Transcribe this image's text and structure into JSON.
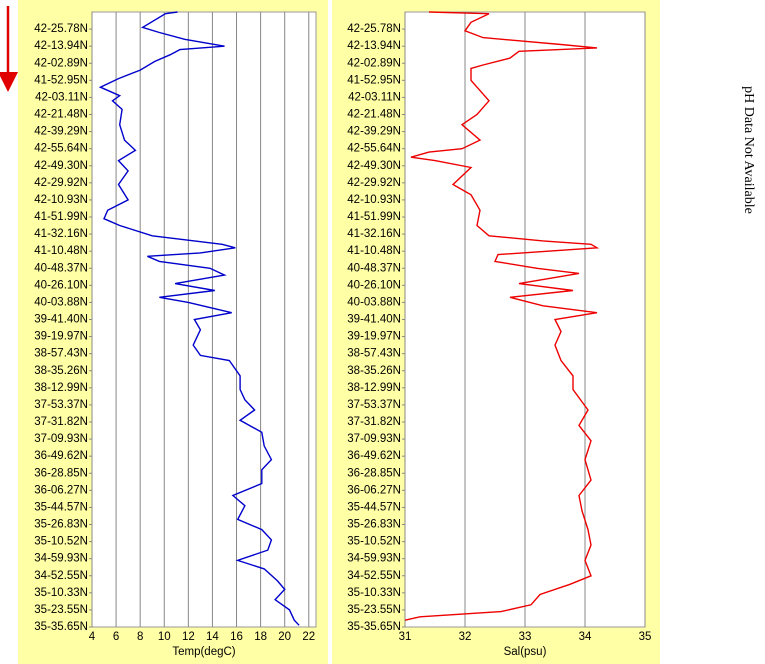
{
  "chart_data": [
    {
      "type": "line",
      "orientation": "horizontal",
      "x_label": "Temp(degC)",
      "grid": true,
      "xlim": [
        4,
        22.6
      ],
      "xticks": [
        4,
        6,
        8,
        10,
        12,
        14,
        16,
        18,
        20,
        22
      ],
      "ylim": [
        0,
        36
      ],
      "yticks": [
        {
          "value": 1,
          "label": "42-25.78N"
        },
        {
          "value": 2,
          "label": "42-13.94N"
        },
        {
          "value": 3,
          "label": "42-02.89N"
        },
        {
          "value": 4,
          "label": "41-52.95N"
        },
        {
          "value": 5,
          "label": "42-03.11N"
        },
        {
          "value": 6,
          "label": "42-21.48N"
        },
        {
          "value": 7,
          "label": "42-39.29N"
        },
        {
          "value": 8,
          "label": "42-55.64N"
        },
        {
          "value": 9,
          "label": "42-49.30N"
        },
        {
          "value": 10,
          "label": "42-29.92N"
        },
        {
          "value": 11,
          "label": "42-10.93N"
        },
        {
          "value": 12,
          "label": "41-51.99N"
        },
        {
          "value": 13,
          "label": "41-32.16N"
        },
        {
          "value": 14,
          "label": "41-10.48N"
        },
        {
          "value": 15,
          "label": "40-48.37N"
        },
        {
          "value": 16,
          "label": "40-26.10N"
        },
        {
          "value": 17,
          "label": "40-03.88N"
        },
        {
          "value": 18,
          "label": "39-41.40N"
        },
        {
          "value": 19,
          "label": "39-19.97N"
        },
        {
          "value": 20,
          "label": "38-57.43N"
        },
        {
          "value": 21,
          "label": "38-35.26N"
        },
        {
          "value": 22,
          "label": "38-12.99N"
        },
        {
          "value": 23,
          "label": "37-53.37N"
        },
        {
          "value": 24,
          "label": "37-31.82N"
        },
        {
          "value": 25,
          "label": "37-09.93N"
        },
        {
          "value": 26,
          "label": "36-49.62N"
        },
        {
          "value": 27,
          "label": "36-28.85N"
        },
        {
          "value": 28,
          "label": "36-06.27N"
        },
        {
          "value": 29,
          "label": "35-44.57N"
        },
        {
          "value": 30,
          "label": "35-26.83N"
        },
        {
          "value": 31,
          "label": "35-10.52N"
        },
        {
          "value": 32,
          "label": "34-59.93N"
        },
        {
          "value": 33,
          "label": "34-52.55N"
        },
        {
          "value": 34,
          "label": "35-10.33N"
        },
        {
          "value": 35,
          "label": "35-23.55N"
        },
        {
          "value": 36,
          "label": "35-35.65N"
        }
      ],
      "series": [
        {
          "color": "#0000cc",
          "y": [
            0.0,
            0.1,
            0.9,
            1.2,
            1.6,
            2.0,
            2.2,
            2.5,
            2.9,
            3.4,
            3.9,
            4.4,
            4.9,
            5.2,
            5.7,
            6.6,
            7.5,
            8.1,
            8.7,
            9.3,
            10.1,
            11.0,
            11.6,
            12.1,
            12.5,
            13.1,
            13.4,
            13.6,
            13.8,
            14.1,
            14.3,
            14.6,
            15.0,
            15.4,
            15.9,
            16.3,
            16.7,
            17.0,
            17.6,
            18.0,
            18.6,
            19.5,
            20.1,
            20.4,
            21.3,
            22.1,
            22.7,
            23.3,
            23.9,
            24.6,
            25.4,
            26.2,
            26.8,
            27.6,
            28.3,
            28.9,
            29.7,
            30.3,
            30.9,
            31.5,
            32.1,
            32.6,
            33.3,
            33.8,
            34.4,
            35.0,
            35.6,
            35.9
          ],
          "values": [
            11.1,
            10.1,
            8.2,
            9.6,
            11.7,
            15.0,
            11.3,
            10.5,
            9.2,
            8.0,
            6.2,
            4.7,
            6.3,
            5.7,
            6.5,
            6.3,
            6.7,
            7.6,
            6.2,
            7.0,
            6.2,
            7.0,
            5.3,
            5.0,
            6.3,
            9.0,
            12.5,
            14.8,
            15.9,
            13.0,
            8.6,
            9.6,
            13.8,
            15.0,
            10.9,
            14.2,
            9.6,
            12.0,
            15.6,
            12.5,
            13.0,
            12.4,
            13.0,
            15.4,
            16.3,
            16.3,
            16.7,
            17.5,
            16.3,
            18.1,
            18.3,
            18.9,
            18.1,
            18.1,
            15.7,
            16.7,
            16.1,
            18.1,
            18.9,
            18.6,
            16.1,
            18.3,
            19.4,
            20.0,
            19.2,
            20.4,
            20.8,
            21.2
          ]
        }
      ]
    },
    {
      "type": "line",
      "orientation": "horizontal",
      "x_label": "Sal(psu)",
      "grid": true,
      "xlim": [
        31,
        35
      ],
      "xticks": [
        31,
        32,
        33,
        34,
        35
      ],
      "ylim": [
        0,
        36
      ],
      "yticks": [
        {
          "value": 1,
          "label": "42-25.78N"
        },
        {
          "value": 2,
          "label": "42-13.94N"
        },
        {
          "value": 3,
          "label": "42-02.89N"
        },
        {
          "value": 4,
          "label": "41-52.95N"
        },
        {
          "value": 5,
          "label": "42-03.11N"
        },
        {
          "value": 6,
          "label": "42-21.48N"
        },
        {
          "value": 7,
          "label": "42-39.29N"
        },
        {
          "value": 8,
          "label": "42-55.64N"
        },
        {
          "value": 9,
          "label": "42-49.30N"
        },
        {
          "value": 10,
          "label": "42-29.92N"
        },
        {
          "value": 11,
          "label": "42-10.93N"
        },
        {
          "value": 12,
          "label": "41-51.99N"
        },
        {
          "value": 13,
          "label": "41-32.16N"
        },
        {
          "value": 14,
          "label": "41-10.48N"
        },
        {
          "value": 15,
          "label": "40-48.37N"
        },
        {
          "value": 16,
          "label": "40-26.10N"
        },
        {
          "value": 17,
          "label": "40-03.88N"
        },
        {
          "value": 18,
          "label": "39-41.40N"
        },
        {
          "value": 19,
          "label": "39-19.97N"
        },
        {
          "value": 20,
          "label": "38-57.43N"
        },
        {
          "value": 21,
          "label": "38-35.26N"
        },
        {
          "value": 22,
          "label": "38-12.99N"
        },
        {
          "value": 23,
          "label": "37-53.37N"
        },
        {
          "value": 24,
          "label": "37-31.82N"
        },
        {
          "value": 25,
          "label": "37-09.93N"
        },
        {
          "value": 26,
          "label": "36-49.62N"
        },
        {
          "value": 27,
          "label": "36-28.85N"
        },
        {
          "value": 28,
          "label": "36-06.27N"
        },
        {
          "value": 29,
          "label": "35-44.57N"
        },
        {
          "value": 30,
          "label": "35-26.83N"
        },
        {
          "value": 31,
          "label": "35-10.52N"
        },
        {
          "value": 32,
          "label": "34-59.93N"
        },
        {
          "value": 33,
          "label": "34-52.55N"
        },
        {
          "value": 34,
          "label": "35-10.33N"
        },
        {
          "value": 35,
          "label": "35-23.55N"
        },
        {
          "value": 36,
          "label": "35-35.65N"
        }
      ],
      "series": [
        {
          "color": "#ee0000",
          "y": [
            0.0,
            0.1,
            0.6,
            1.1,
            1.5,
            1.9,
            2.1,
            2.3,
            2.7,
            3.1,
            3.3,
            4.0,
            4.6,
            5.2,
            6.0,
            6.6,
            7.5,
            8.0,
            8.2,
            8.5,
            8.7,
            9.1,
            10.1,
            10.7,
            11.6,
            12.5,
            13.1,
            13.4,
            13.6,
            13.8,
            14.2,
            14.6,
            15.0,
            15.3,
            15.9,
            16.3,
            16.7,
            17.2,
            17.6,
            18.0,
            18.7,
            19.5,
            20.4,
            21.3,
            22.1,
            23.3,
            24.2,
            25.1,
            26.2,
            27.4,
            28.3,
            29.2,
            30.3,
            31.2,
            32.1,
            33.0,
            33.5,
            34.1,
            34.7,
            35.1,
            35.4,
            35.6
          ],
          "values": [
            31.4,
            32.4,
            32.1,
            32.0,
            32.3,
            33.6,
            34.2,
            32.9,
            32.75,
            32.3,
            32.1,
            32.1,
            32.25,
            32.4,
            32.2,
            31.95,
            32.25,
            31.95,
            31.4,
            31.1,
            31.5,
            32.1,
            31.8,
            32.1,
            32.25,
            32.2,
            32.4,
            33.3,
            34.1,
            34.2,
            32.55,
            32.5,
            33.2,
            33.9,
            32.9,
            33.8,
            32.75,
            33.3,
            34.2,
            33.5,
            33.6,
            33.5,
            33.6,
            33.8,
            33.8,
            34.05,
            33.9,
            34.1,
            34.0,
            34.1,
            33.9,
            33.95,
            34.05,
            34.1,
            34.0,
            34.1,
            33.75,
            33.25,
            33.1,
            32.6,
            31.25,
            31.0
          ]
        }
      ]
    }
  ],
  "side_note": "pH Data Not Available"
}
